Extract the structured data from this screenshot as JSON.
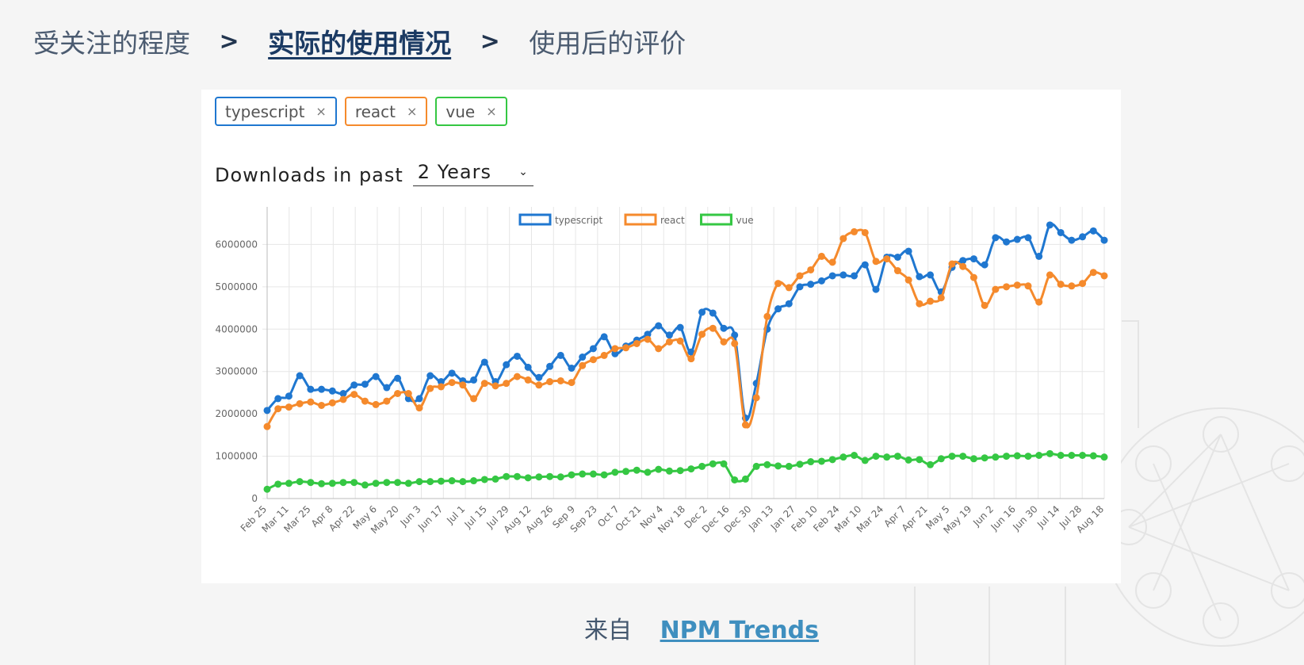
{
  "breadcrumb": [
    {
      "label": "受关注的程度",
      "active": false
    },
    {
      "label": "实际的使用情况",
      "active": true
    },
    {
      "label": "使用后的评价",
      "active": false
    }
  ],
  "breadcrumb_separator": ">",
  "chips": [
    {
      "label": "typescript",
      "color": "#1f77d0"
    },
    {
      "label": "react",
      "color": "#f58a2c"
    },
    {
      "label": "vue",
      "color": "#35c743"
    }
  ],
  "chip_remove_glyph": "×",
  "downloads": {
    "label": "Downloads in past",
    "selected": "2 Years",
    "chevron": "⌄"
  },
  "source": {
    "prefix": "来自",
    "link": "NPM Trends"
  },
  "chart_data": {
    "type": "line",
    "title": "",
    "xlabel": "",
    "ylabel": "",
    "ylim": [
      0,
      7000000
    ],
    "yticks": [
      0,
      1000000,
      2000000,
      3000000,
      4000000,
      5000000,
      6000000,
      7000000
    ],
    "grid": true,
    "legend": "top-center",
    "x_tick_labels": [
      "Feb 25",
      "Mar 11",
      "Mar 25",
      "Apr 8",
      "Apr 22",
      "May 6",
      "May 20",
      "Jun 3",
      "Jun 17",
      "Jul 1",
      "Jul 15",
      "Jul 29",
      "Aug 12",
      "Aug 26",
      "Sep 9",
      "Sep 23",
      "Oct 7",
      "Oct 21",
      "Nov 4",
      "Nov 18",
      "Dec 2",
      "Dec 16",
      "Dec 30",
      "Jan 13",
      "Jan 27",
      "Feb 10",
      "Feb 24",
      "Mar 10",
      "Mar 24",
      "Apr 7",
      "Apr 21",
      "May 5",
      "May 19",
      "Jun 2",
      "Jun 16",
      "Jun 30",
      "Jul 14",
      "Jul 28",
      "Aug 18"
    ],
    "series": [
      {
        "name": "typescript",
        "color": "#1f77d0",
        "values": [
          2080000,
          2360000,
          2420000,
          2900000,
          2580000,
          2580000,
          2540000,
          2480000,
          2680000,
          2700000,
          2880000,
          2620000,
          2840000,
          2360000,
          2360000,
          2900000,
          2760000,
          2960000,
          2780000,
          2800000,
          3220000,
          2760000,
          3160000,
          3360000,
          3100000,
          2860000,
          3120000,
          3380000,
          3080000,
          3340000,
          3540000,
          3820000,
          3420000,
          3600000,
          3740000,
          3880000,
          4080000,
          3860000,
          4040000,
          3460000,
          4400000,
          4380000,
          4020000,
          3860000,
          1900000,
          2720000,
          4000000,
          4480000,
          4600000,
          5000000,
          5060000,
          5140000,
          5260000,
          5280000,
          5260000,
          5520000,
          4940000,
          5700000,
          5700000,
          5840000,
          5240000,
          5280000,
          4880000,
          5460000,
          5620000,
          5660000,
          5520000,
          6160000,
          6060000,
          6120000,
          6160000,
          5720000,
          6460000,
          6280000,
          6100000,
          6180000,
          6320000,
          6100000
        ]
      },
      {
        "name": "react",
        "color": "#f58a2c",
        "values": [
          1700000,
          2120000,
          2160000,
          2240000,
          2280000,
          2200000,
          2260000,
          2340000,
          2460000,
          2300000,
          2220000,
          2300000,
          2480000,
          2480000,
          2140000,
          2600000,
          2640000,
          2740000,
          2680000,
          2360000,
          2720000,
          2660000,
          2720000,
          2880000,
          2800000,
          2680000,
          2760000,
          2780000,
          2740000,
          3140000,
          3280000,
          3380000,
          3540000,
          3560000,
          3660000,
          3760000,
          3540000,
          3700000,
          3720000,
          3300000,
          3880000,
          4020000,
          3700000,
          3660000,
          1740000,
          2380000,
          4300000,
          5080000,
          4980000,
          5260000,
          5400000,
          5720000,
          5580000,
          6140000,
          6300000,
          6280000,
          5600000,
          5660000,
          5380000,
          5160000,
          4600000,
          4660000,
          4740000,
          5540000,
          5480000,
          5220000,
          4560000,
          4940000,
          5000000,
          5040000,
          5020000,
          4640000,
          5280000,
          5060000,
          5020000,
          5080000,
          5340000,
          5260000
        ]
      },
      {
        "name": "vue",
        "color": "#35c743",
        "values": [
          220000,
          340000,
          360000,
          400000,
          380000,
          350000,
          360000,
          380000,
          380000,
          320000,
          360000,
          380000,
          380000,
          360000,
          400000,
          400000,
          410000,
          420000,
          400000,
          420000,
          450000,
          460000,
          520000,
          520000,
          490000,
          510000,
          520000,
          510000,
          560000,
          580000,
          580000,
          560000,
          620000,
          640000,
          670000,
          620000,
          690000,
          650000,
          660000,
          700000,
          760000,
          820000,
          820000,
          440000,
          460000,
          760000,
          800000,
          770000,
          760000,
          810000,
          870000,
          880000,
          920000,
          980000,
          1020000,
          900000,
          1000000,
          980000,
          1000000,
          910000,
          920000,
          800000,
          940000,
          1000000,
          1000000,
          940000,
          960000,
          980000,
          1000000,
          1010000,
          1000000,
          1020000,
          1060000,
          1020000,
          1020000,
          1020000,
          1010000,
          980000
        ]
      }
    ]
  }
}
